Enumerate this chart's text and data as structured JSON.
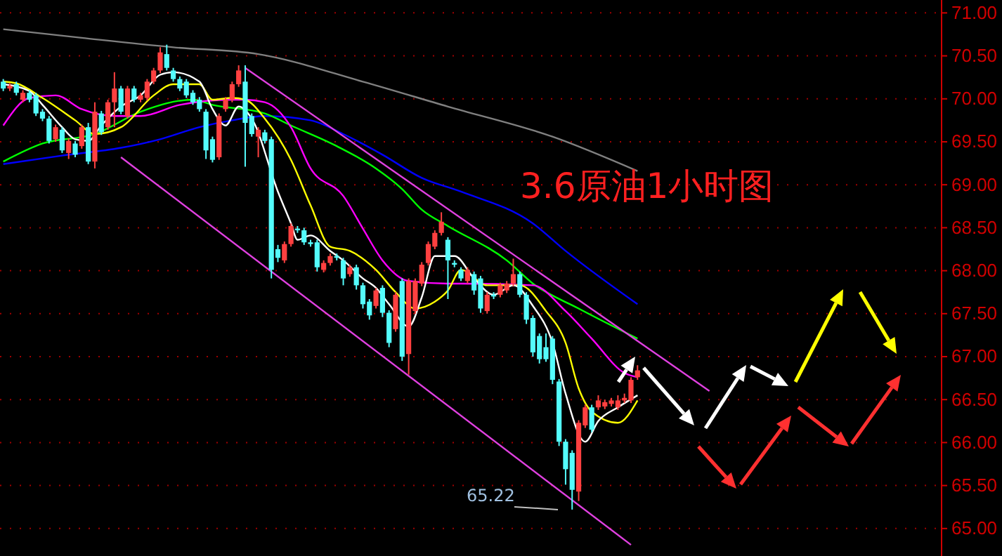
{
  "chart_data": {
    "type": "candlestick",
    "title": "3.6原油1小时图",
    "categories": [
      null,
      null,
      null,
      null,
      null,
      null,
      null,
      null,
      null,
      null,
      null,
      null,
      null,
      null,
      null,
      null,
      null,
      null,
      null,
      null,
      null,
      null,
      null,
      null,
      null,
      null,
      null,
      null,
      null,
      null,
      null,
      null,
      null,
      null,
      null,
      null,
      null,
      null,
      null,
      null,
      null,
      null,
      null,
      null,
      null,
      null,
      null,
      null,
      null,
      null,
      null,
      null,
      null,
      null,
      null,
      null,
      null,
      null,
      null,
      null,
      null,
      null,
      null,
      null,
      null,
      null,
      null,
      null,
      null,
      null,
      null,
      null,
      null,
      null,
      null,
      null,
      null,
      null,
      null,
      null,
      null,
      null,
      null,
      null,
      null,
      null,
      null,
      null,
      null,
      null,
      null,
      null,
      null,
      null,
      null,
      null,
      null,
      null,
      null,
      null,
      null,
      null,
      null,
      null,
      null,
      null,
      null,
      null,
      null,
      null,
      null,
      null,
      null,
      null,
      null,
      null,
      null,
      null,
      null,
      null,
      null,
      null,
      null,
      null,
      null,
      null,
      null,
      null,
      null,
      null,
      null,
      null,
      null,
      null,
      null,
      null,
      null,
      null,
      null,
      null,
      null,
      null,
      null,
      null
    ],
    "ohlc": [
      [
        70.2,
        70.23,
        70.09,
        70.12
      ],
      [
        70.12,
        70.18,
        70.09,
        70.15
      ],
      [
        70.17,
        70.2,
        70.04,
        70.07
      ],
      [
        69.99,
        70.1,
        69.96,
        70.07
      ],
      [
        70.07,
        70.1,
        69.96,
        69.99
      ],
      [
        70.04,
        70.07,
        69.8,
        69.83
      ],
      [
        69.85,
        69.88,
        69.74,
        69.77
      ],
      [
        69.77,
        69.8,
        69.48,
        69.51
      ],
      [
        69.53,
        69.7,
        69.5,
        69.67
      ],
      [
        69.64,
        69.67,
        69.37,
        69.4
      ],
      [
        69.37,
        69.54,
        69.3,
        69.51
      ],
      [
        69.48,
        69.51,
        69.32,
        69.35
      ],
      [
        69.45,
        69.7,
        69.42,
        69.67
      ],
      [
        69.67,
        69.72,
        69.24,
        69.27
      ],
      [
        69.27,
        69.96,
        69.19,
        69.85
      ],
      [
        69.83,
        69.86,
        69.58,
        69.61
      ],
      [
        69.67,
        69.99,
        69.64,
        69.96
      ],
      [
        69.96,
        70.31,
        69.67,
        70.12
      ],
      [
        70.12,
        70.15,
        69.82,
        69.85
      ],
      [
        69.8,
        70.15,
        69.77,
        70.12
      ],
      [
        70.12,
        70.15,
        69.96,
        69.99
      ],
      [
        69.99,
        70.07,
        69.96,
        70.04
      ],
      [
        70.01,
        70.23,
        69.98,
        70.2
      ],
      [
        70.2,
        70.36,
        70.17,
        70.33
      ],
      [
        70.33,
        70.6,
        70.3,
        70.54
      ],
      [
        70.52,
        70.63,
        70.33,
        70.36
      ],
      [
        70.33,
        70.36,
        70.2,
        70.23
      ],
      [
        70.23,
        70.26,
        70.09,
        70.12
      ],
      [
        70.2,
        70.23,
        70.01,
        70.04
      ],
      [
        70.07,
        70.1,
        69.93,
        69.96
      ],
      [
        69.99,
        70.02,
        69.85,
        69.88
      ],
      [
        69.85,
        69.88,
        69.3,
        69.4
      ],
      [
        69.53,
        69.56,
        69.26,
        69.29
      ],
      [
        69.32,
        69.83,
        69.29,
        69.8
      ],
      [
        69.88,
        70.02,
        69.85,
        69.99
      ],
      [
        69.99,
        70.2,
        69.96,
        70.17
      ],
      [
        70.17,
        70.39,
        70.14,
        70.33
      ],
      [
        70.2,
        70.39,
        69.21,
        69.72
      ],
      [
        69.8,
        69.83,
        69.56,
        69.59
      ],
      [
        69.56,
        69.67,
        69.32,
        69.64
      ],
      [
        69.61,
        69.64,
        69.48,
        69.51
      ],
      [
        69.53,
        69.56,
        67.91,
        68.01
      ],
      [
        68.25,
        68.3,
        68.1,
        68.15
      ],
      [
        68.12,
        68.34,
        68.09,
        68.31
      ],
      [
        68.31,
        68.55,
        68.28,
        68.52
      ],
      [
        68.49,
        68.52,
        68.44,
        68.47
      ],
      [
        68.47,
        68.5,
        68.3,
        68.33
      ],
      [
        68.33,
        68.36,
        68.28,
        68.31
      ],
      [
        68.33,
        68.36,
        67.99,
        68.04
      ],
      [
        68.01,
        68.12,
        67.98,
        68.09
      ],
      [
        68.09,
        68.2,
        68.06,
        68.17
      ],
      [
        68.17,
        68.2,
        68.12,
        68.15
      ],
      [
        68.12,
        68.15,
        67.83,
        67.91
      ],
      [
        67.96,
        68.07,
        67.93,
        68.04
      ],
      [
        68.04,
        68.07,
        67.78,
        67.83
      ],
      [
        67.83,
        67.86,
        67.56,
        67.61
      ],
      [
        67.64,
        67.67,
        67.43,
        67.48
      ],
      [
        67.59,
        67.8,
        67.56,
        67.77
      ],
      [
        67.8,
        67.83,
        67.46,
        67.51
      ],
      [
        67.51,
        67.54,
        67.11,
        67.16
      ],
      [
        67.32,
        67.75,
        67.29,
        67.72
      ],
      [
        67.88,
        67.91,
        66.95,
        67.0
      ],
      [
        67.03,
        67.91,
        66.79,
        67.88
      ],
      [
        67.53,
        67.91,
        67.5,
        67.88
      ],
      [
        67.85,
        68.1,
        67.82,
        68.07
      ],
      [
        68.09,
        68.34,
        68.06,
        68.31
      ],
      [
        68.28,
        68.47,
        68.25,
        68.44
      ],
      [
        68.44,
        68.68,
        68.41,
        68.57
      ],
      [
        68.36,
        68.39,
        67.67,
        68.12
      ],
      [
        68.09,
        68.12,
        68.04,
        68.07
      ],
      [
        68.01,
        68.04,
        67.88,
        67.91
      ],
      [
        67.88,
        68.04,
        67.85,
        68.01
      ],
      [
        67.96,
        67.99,
        67.72,
        67.77
      ],
      [
        67.91,
        67.94,
        67.51,
        67.56
      ],
      [
        67.53,
        67.75,
        67.5,
        67.72
      ],
      [
        67.72,
        67.75,
        67.67,
        67.7
      ],
      [
        67.72,
        67.86,
        67.69,
        67.83
      ],
      [
        67.77,
        67.88,
        67.74,
        67.85
      ],
      [
        67.85,
        68.14,
        67.82,
        67.96
      ],
      [
        67.96,
        67.99,
        67.69,
        67.72
      ],
      [
        67.72,
        67.75,
        67.38,
        67.43
      ],
      [
        67.45,
        67.48,
        67.0,
        67.05
      ],
      [
        67.24,
        67.27,
        66.92,
        66.97
      ],
      [
        67.11,
        67.27,
        66.94,
        66.97
      ],
      [
        67.21,
        67.24,
        66.68,
        66.73
      ],
      [
        66.71,
        66.74,
        65.96,
        66.01
      ],
      [
        66.01,
        66.04,
        65.51,
        65.69
      ],
      [
        65.88,
        65.91,
        65.22,
        65.45
      ],
      [
        65.43,
        66.26,
        65.32,
        66.23
      ],
      [
        66.2,
        66.44,
        66.17,
        66.41
      ],
      [
        66.41,
        66.44,
        66.12,
        66.15
      ],
      [
        66.41,
        66.55,
        66.38,
        66.49
      ],
      [
        66.42,
        66.5,
        66.39,
        66.47
      ],
      [
        66.45,
        66.52,
        66.42,
        66.49
      ],
      [
        66.41,
        66.55,
        66.38,
        66.49
      ],
      [
        66.49,
        66.57,
        66.46,
        66.52
      ],
      [
        66.49,
        66.76,
        66.46,
        66.73
      ],
      [
        66.76,
        66.9,
        66.73,
        66.84
      ],
      null,
      null,
      null,
      null,
      null,
      null,
      null,
      null,
      null,
      null,
      null,
      null,
      null,
      null,
      null,
      null,
      null,
      null,
      null,
      null,
      null,
      null,
      null,
      null,
      null,
      null,
      null,
      null,
      null,
      null,
      null,
      null,
      null,
      null,
      null,
      null,
      null,
      null,
      null,
      null,
      null,
      null,
      null,
      null,
      null,
      null
    ],
    "series": [
      {
        "type": "line",
        "color": "#808080",
        "values": [
          70.81,
          null,
          null,
          null,
          null,
          null,
          null,
          null,
          null,
          null,
          null,
          null,
          70.71,
          null,
          null,
          null,
          null,
          null,
          null,
          null,
          null,
          null,
          null,
          null,
          null,
          null,
          70.6,
          null,
          null,
          null,
          null,
          null,
          null,
          null,
          null,
          null,
          null,
          null,
          null,
          70.52,
          null,
          null,
          null,
          null,
          null,
          null,
          null,
          null,
          null,
          null,
          null,
          null,
          null,
          null,
          null,
          70.2,
          null,
          null,
          null,
          null,
          null,
          null,
          null,
          null,
          null,
          null,
          null,
          null,
          69.91,
          null,
          null,
          null,
          null,
          null,
          null,
          null,
          null,
          null,
          null,
          null,
          null,
          null,
          null,
          null,
          69.56,
          null,
          null,
          null,
          null,
          null,
          null,
          null,
          null,
          null,
          null,
          null,
          null,
          69.16,
          null,
          null,
          null,
          null,
          null,
          null,
          null,
          null,
          null,
          null,
          null,
          null,
          null,
          null,
          null,
          null,
          null,
          null,
          null,
          null,
          null,
          null,
          null,
          null,
          null,
          null,
          null,
          null,
          null,
          null,
          null,
          null,
          null,
          null,
          null,
          null,
          null,
          null,
          null,
          null,
          null,
          null,
          null,
          null,
          null,
          null
        ]
      },
      {
        "type": "line",
        "color": "#0000ff",
        "values": [
          69.24,
          null,
          null,
          null,
          null,
          null,
          null,
          null,
          null,
          69.34,
          null,
          null,
          null,
          null,
          null,
          null,
          null,
          null,
          69.43,
          null,
          null,
          null,
          null,
          null,
          69.53,
          null,
          null,
          null,
          null,
          null,
          69.67,
          null,
          null,
          null,
          null,
          69.75,
          null,
          null,
          null,
          null,
          69.8,
          null,
          null,
          null,
          null,
          null,
          null,
          69.75,
          null,
          null,
          null,
          null,
          69.59,
          null,
          null,
          null,
          null,
          null,
          69.35,
          null,
          null,
          null,
          null,
          null,
          69.08,
          null,
          null,
          null,
          null,
          null,
          68.92,
          null,
          null,
          null,
          null,
          null,
          null,
          null,
          null,
          null,
          null,
          68.55,
          null,
          null,
          null,
          null,
          68.23,
          null,
          null,
          null,
          null,
          null,
          null,
          null,
          null,
          null,
          null,
          67.61,
          null,
          null,
          null,
          null,
          null,
          null,
          null,
          null,
          null,
          null,
          null,
          null,
          null,
          null,
          null,
          null,
          null,
          null,
          null,
          null,
          null,
          null,
          null,
          null,
          null,
          null,
          null,
          null,
          null,
          null,
          null,
          null,
          null,
          null,
          null,
          null,
          null,
          null,
          null,
          null,
          null,
          null,
          null,
          null,
          null,
          null
        ]
      },
      {
        "type": "line",
        "color": "#00ff00",
        "values": [
          69.27,
          null,
          null,
          null,
          null,
          null,
          69.48,
          null,
          null,
          null,
          null,
          null,
          null,
          null,
          69.59,
          null,
          null,
          null,
          null,
          null,
          null,
          69.85,
          null,
          null,
          null,
          null,
          null,
          null,
          null,
          69.99,
          null,
          null,
          69.93,
          null,
          null,
          null,
          null,
          null,
          null,
          null,
          69.83,
          null,
          null,
          null,
          69.69,
          null,
          null,
          null,
          null,
          null,
          null,
          69.45,
          null,
          null,
          null,
          null,
          null,
          69.19,
          null,
          null,
          null,
          68.95,
          null,
          null,
          68.71,
          null,
          null,
          null,
          68.52,
          null,
          null,
          null,
          null,
          null,
          null,
          null,
          null,
          68.12,
          null,
          null,
          null,
          67.85,
          null,
          null,
          null,
          null,
          null,
          null,
          67.56,
          null,
          null,
          null,
          null,
          null,
          null,
          null,
          null,
          67.21,
          null,
          null,
          null,
          null,
          null,
          null,
          null,
          null,
          null,
          null,
          null,
          null,
          null,
          null,
          null,
          null,
          null,
          null,
          null,
          null,
          null,
          null,
          null,
          null,
          null,
          null,
          null,
          null,
          null,
          null,
          null,
          null,
          null,
          null,
          null,
          null,
          null,
          null,
          null,
          null,
          null,
          null,
          null,
          null,
          null,
          null
        ]
      },
      {
        "type": "line",
        "color": "#ff00ff",
        "values": [
          69.69,
          null,
          null,
          null,
          70.01,
          null,
          null,
          null,
          70.04,
          null,
          null,
          null,
          69.88,
          null,
          null,
          null,
          null,
          69.8,
          null,
          null,
          null,
          69.8,
          null,
          null,
          null,
          null,
          null,
          69.93,
          null,
          null,
          null,
          null,
          null,
          null,
          null,
          69.99,
          null,
          69.99,
          null,
          null,
          69.96,
          null,
          null,
          null,
          69.67,
          null,
          null,
          69.19,
          null,
          null,
          null,
          null,
          68.87,
          null,
          null,
          68.49,
          null,
          null,
          68.12,
          null,
          null,
          null,
          67.88,
          null,
          null,
          null,
          null,
          null,
          67.85,
          null,
          67.85,
          null,
          null,
          null,
          null,
          null,
          null,
          null,
          null,
          null,
          null,
          67.83,
          null,
          null,
          null,
          null,
          67.53,
          null,
          null,
          null,
          67.21,
          null,
          null,
          null,
          null,
          66.81,
          null,
          66.76,
          null,
          null,
          null,
          null,
          null,
          null,
          null,
          null,
          null,
          null,
          null,
          null,
          null,
          null,
          null,
          null,
          null,
          null,
          null,
          null,
          null,
          null,
          null,
          null,
          null,
          null,
          null,
          null,
          null,
          null,
          null,
          null,
          null,
          null,
          null,
          null,
          null,
          null,
          null,
          null,
          null,
          null,
          null,
          null,
          null,
          null
        ]
      },
      {
        "type": "line",
        "color": "#ffff00",
        "values": [
          70.2,
          null,
          70.18,
          null,
          null,
          null,
          70.01,
          null,
          null,
          null,
          null,
          69.75,
          null,
          null,
          69.59,
          null,
          null,
          null,
          69.67,
          null,
          null,
          null,
          null,
          70.04,
          null,
          null,
          70.17,
          null,
          null,
          null,
          70.17,
          null,
          69.99,
          null,
          null,
          70.01,
          null,
          69.99,
          null,
          null,
          69.77,
          null,
          null,
          null,
          69.29,
          null,
          null,
          68.76,
          null,
          null,
          68.28,
          null,
          null,
          68.23,
          null,
          null,
          null,
          68.01,
          null,
          null,
          67.75,
          null,
          null,
          67.56,
          null,
          null,
          67.64,
          null,
          67.77,
          null,
          68.01,
          null,
          null,
          null,
          67.83,
          null,
          null,
          null,
          null,
          67.83,
          null,
          null,
          null,
          67.53,
          null,
          null,
          67.16,
          null,
          66.63,
          null,
          66.36,
          null,
          null,
          null,
          66.23,
          null,
          null,
          66.49,
          null,
          null,
          null,
          null,
          null,
          null,
          null,
          null,
          null,
          null,
          null,
          null,
          null,
          null,
          null,
          null,
          null,
          null,
          null,
          null,
          null,
          null,
          null,
          null,
          null,
          null,
          null,
          null,
          null,
          null,
          null,
          null,
          null,
          null,
          null,
          null,
          null,
          null,
          null,
          null,
          null,
          null,
          null,
          null,
          null,
          null
        ]
      },
      {
        "type": "line",
        "color": "#ffffff",
        "values": [
          70.17,
          null,
          null,
          null,
          70.09,
          null,
          69.93,
          null,
          null,
          69.67,
          null,
          69.53,
          null,
          69.51,
          null,
          69.69,
          null,
          null,
          69.91,
          null,
          null,
          70.04,
          null,
          null,
          70.28,
          null,
          70.31,
          null,
          null,
          null,
          70.2,
          null,
          69.88,
          null,
          69.69,
          null,
          69.91,
          null,
          69.77,
          null,
          null,
          null,
          68.92,
          null,
          68.55,
          68.36,
          null,
          68.41,
          null,
          null,
          68.23,
          null,
          68.12,
          null,
          null,
          67.91,
          null,
          67.8,
          null,
          67.61,
          null,
          null,
          67.35,
          null,
          67.69,
          null,
          68.17,
          null,
          null,
          68.17,
          null,
          null,
          67.91,
          null,
          null,
          67.72,
          null,
          null,
          67.83,
          null,
          null,
          67.59,
          null,
          null,
          67.16,
          null,
          66.57,
          null,
          null,
          66.01,
          null,
          66.25,
          null,
          null,
          66.41,
          null,
          null,
          66.55,
          null,
          null,
          null,
          null,
          null,
          null,
          null,
          null,
          null,
          null,
          null,
          null,
          null,
          null,
          null,
          null,
          null,
          null,
          null,
          null,
          null,
          null,
          null,
          null,
          null,
          null,
          null,
          null,
          null,
          null,
          null,
          null,
          null,
          null,
          null,
          null,
          null,
          null,
          null,
          null,
          null,
          null,
          null,
          null,
          null,
          null
        ]
      },
      {
        "type": "line",
        "color": "#e040e0",
        "values": [
          null,
          null,
          null,
          null,
          null,
          null,
          null,
          null,
          null,
          null,
          null,
          null,
          null,
          null,
          null,
          null,
          null,
          null,
          null,
          null,
          null,
          null,
          null,
          null,
          null,
          null,
          null,
          null,
          null,
          null,
          null,
          null,
          null,
          null,
          null,
          null,
          null,
          70.36,
          null,
          null,
          null,
          null,
          null,
          null,
          null,
          null,
          null,
          null,
          null,
          null,
          null,
          null,
          null,
          null,
          null,
          null,
          null,
          null,
          null,
          null,
          null,
          null,
          null,
          null,
          null,
          null,
          null,
          null,
          null,
          null,
          null,
          null,
          null,
          null,
          null,
          null,
          null,
          null,
          null,
          null,
          null,
          null,
          null,
          null,
          null,
          null,
          null,
          null,
          null,
          null,
          null,
          null,
          null,
          null,
          null,
          null,
          null,
          null,
          null,
          null,
          null,
          null,
          null,
          null,
          null,
          null,
          null,
          null,
          66.6,
          null,
          null,
          null,
          null,
          null,
          null,
          null,
          null,
          null,
          null,
          null,
          null,
          null,
          null,
          null,
          null,
          null,
          null,
          null,
          null,
          null,
          null,
          null,
          null,
          null,
          null,
          null,
          null,
          null,
          null,
          null,
          null,
          null,
          null,
          null
        ]
      },
      {
        "type": "line",
        "color": "#e040e0",
        "values": [
          null,
          null,
          null,
          null,
          null,
          null,
          null,
          null,
          null,
          null,
          null,
          null,
          null,
          null,
          null,
          null,
          null,
          null,
          69.32,
          null,
          null,
          null,
          null,
          null,
          null,
          null,
          null,
          null,
          null,
          null,
          null,
          null,
          null,
          null,
          null,
          null,
          null,
          null,
          null,
          null,
          null,
          null,
          null,
          null,
          null,
          null,
          null,
          null,
          null,
          null,
          null,
          null,
          null,
          null,
          null,
          null,
          null,
          null,
          null,
          null,
          null,
          null,
          null,
          null,
          null,
          null,
          null,
          null,
          null,
          null,
          null,
          null,
          null,
          null,
          null,
          null,
          null,
          null,
          null,
          null,
          null,
          null,
          null,
          null,
          null,
          null,
          null,
          null,
          null,
          null,
          null,
          null,
          null,
          null,
          null,
          null,
          64.81,
          null,
          null,
          null,
          null,
          null,
          null,
          null,
          null,
          null,
          null,
          null,
          null,
          null,
          null,
          null,
          null,
          null,
          null,
          null,
          null,
          null,
          null,
          null,
          null,
          null,
          null,
          null,
          null,
          null,
          null,
          null,
          null,
          null,
          null,
          null,
          null,
          null,
          null,
          null,
          null,
          null,
          null,
          null,
          null,
          null,
          null,
          null
        ]
      }
    ],
    "annotations": [
      "65.22"
    ],
    "ylim": [
      64.68,
      71.15
    ],
    "yticks": [
      {
        "value": 65,
        "label": "65.00"
      },
      {
        "value": 65.5,
        "label": "65.50"
      },
      {
        "value": 66,
        "label": "66.00"
      },
      {
        "value": 66.5,
        "label": "66.50"
      },
      {
        "value": 67,
        "label": "67.00"
      },
      {
        "value": 67.5,
        "label": "67.50"
      },
      {
        "value": 68,
        "label": "68.00"
      },
      {
        "value": 68.5,
        "label": "68.50"
      },
      {
        "value": 69,
        "label": "69.00"
      },
      {
        "value": 69.5,
        "label": "69.50"
      },
      {
        "value": 70,
        "label": "70.00"
      },
      {
        "value": 70.5,
        "label": "70.50"
      },
      {
        "value": 71,
        "label": "71.00"
      }
    ],
    "grid": "y",
    "tick_labels": "y"
  }
}
